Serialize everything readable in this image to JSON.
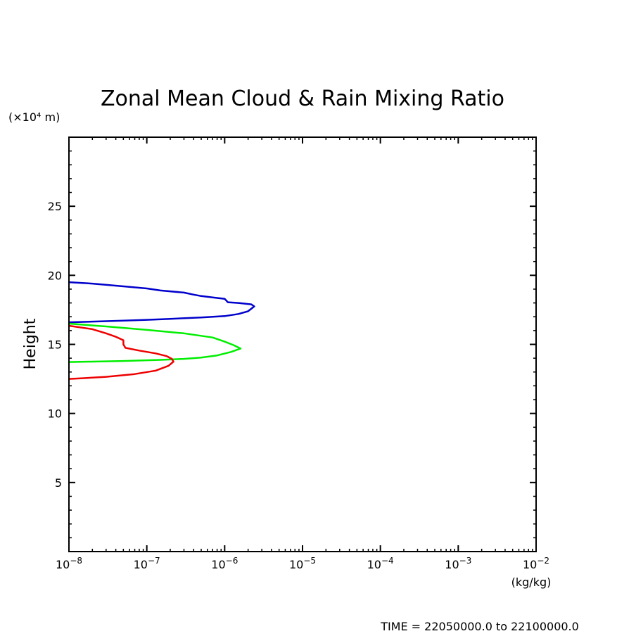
{
  "chart_data": {
    "type": "line",
    "title": "Zonal Mean Cloud & Rain Mixing Ratio",
    "ylabel": "Height",
    "y_unit_label": "(×10⁴ m)",
    "x_unit_label": "(kg/kg)",
    "footer": "TIME = 22050000.0 to 22100000.0",
    "x_scale": "log",
    "xlim": [
      1e-08,
      0.01
    ],
    "ylim": [
      0,
      30
    ],
    "x_ticks": [
      {
        "value": 1e-08,
        "base": "10",
        "exp": "−8"
      },
      {
        "value": 1e-07,
        "base": "10",
        "exp": "−7"
      },
      {
        "value": 1e-06,
        "base": "10",
        "exp": "−6"
      },
      {
        "value": 1e-05,
        "base": "10",
        "exp": "−5"
      },
      {
        "value": 0.0001,
        "base": "10",
        "exp": "−4"
      },
      {
        "value": 0.001,
        "base": "10",
        "exp": "−3"
      },
      {
        "value": 0.01,
        "base": "10",
        "exp": "−2"
      }
    ],
    "y_ticks": [
      {
        "value": 5,
        "label": "5"
      },
      {
        "value": 10,
        "label": "10"
      },
      {
        "value": 15,
        "label": "15"
      },
      {
        "value": 20,
        "label": "20"
      },
      {
        "value": 25,
        "label": "25"
      }
    ],
    "series": [
      {
        "color": "#0000cc",
        "points": [
          [
            1e-08,
            19.5
          ],
          [
            2e-08,
            19.4
          ],
          [
            5e-08,
            19.2
          ],
          [
            1e-07,
            19.05
          ],
          [
            1.5e-07,
            18.9
          ],
          [
            3e-07,
            18.75
          ],
          [
            4e-07,
            18.6
          ],
          [
            5e-07,
            18.5
          ],
          [
            7e-07,
            18.4
          ],
          [
            1e-06,
            18.3
          ],
          [
            1.1e-06,
            18.05
          ],
          [
            1.5e-06,
            18.0
          ],
          [
            2.2e-06,
            17.9
          ],
          [
            2.4e-06,
            17.75
          ],
          [
            2e-06,
            17.4
          ],
          [
            1.5e-06,
            17.2
          ],
          [
            1e-06,
            17.05
          ],
          [
            5e-07,
            16.95
          ],
          [
            2e-07,
            16.85
          ],
          [
            1e-07,
            16.78
          ],
          [
            5e-08,
            16.72
          ],
          [
            2e-08,
            16.65
          ],
          [
            1e-08,
            16.6
          ]
        ]
      },
      {
        "color": "#00ee00",
        "points": [
          [
            1e-08,
            16.5
          ],
          [
            3e-08,
            16.3
          ],
          [
            1e-07,
            16.05
          ],
          [
            3e-07,
            15.8
          ],
          [
            7e-07,
            15.5
          ],
          [
            1e-06,
            15.2
          ],
          [
            1.3e-06,
            14.95
          ],
          [
            1.6e-06,
            14.7
          ],
          [
            1.2e-06,
            14.45
          ],
          [
            8e-07,
            14.2
          ],
          [
            5e-07,
            14.05
          ],
          [
            3e-07,
            13.95
          ],
          [
            1.5e-07,
            13.88
          ],
          [
            5e-08,
            13.8
          ],
          [
            2e-08,
            13.75
          ],
          [
            1e-08,
            13.72
          ]
        ]
      },
      {
        "color": "#ee0000",
        "points": [
          [
            1e-08,
            16.35
          ],
          [
            2e-08,
            16.1
          ],
          [
            3e-08,
            15.8
          ],
          [
            4e-08,
            15.55
          ],
          [
            5e-08,
            15.3
          ],
          [
            5e-08,
            15.0
          ],
          [
            5.3e-08,
            14.75
          ],
          [
            8e-08,
            14.55
          ],
          [
            1.3e-07,
            14.35
          ],
          [
            1.8e-07,
            14.15
          ],
          [
            2.1e-07,
            13.95
          ],
          [
            2.2e-07,
            13.75
          ],
          [
            1.9e-07,
            13.45
          ],
          [
            1.3e-07,
            13.1
          ],
          [
            7e-08,
            12.85
          ],
          [
            3e-08,
            12.65
          ],
          [
            1.5e-08,
            12.55
          ],
          [
            1e-08,
            12.5
          ]
        ]
      }
    ]
  }
}
